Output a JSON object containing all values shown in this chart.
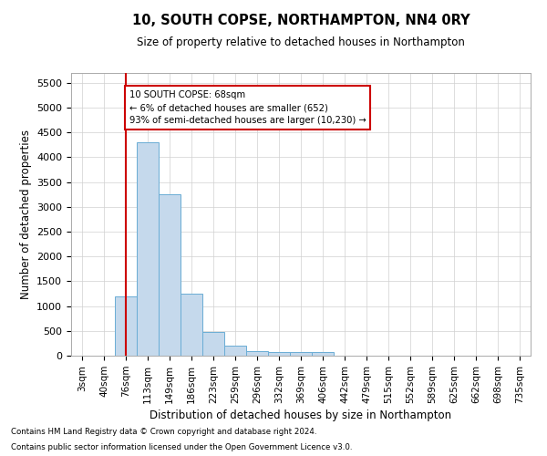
{
  "title": "10, SOUTH COPSE, NORTHAMPTON, NN4 0RY",
  "subtitle": "Size of property relative to detached houses in Northampton",
  "xlabel": "Distribution of detached houses by size in Northampton",
  "ylabel": "Number of detached properties",
  "footnote1": "Contains HM Land Registry data © Crown copyright and database right 2024.",
  "footnote2": "Contains public sector information licensed under the Open Government Licence v3.0.",
  "bin_labels": [
    "3sqm",
    "40sqm",
    "76sqm",
    "113sqm",
    "149sqm",
    "186sqm",
    "223sqm",
    "259sqm",
    "296sqm",
    "332sqm",
    "369sqm",
    "406sqm",
    "442sqm",
    "479sqm",
    "515sqm",
    "552sqm",
    "589sqm",
    "625sqm",
    "662sqm",
    "698sqm",
    "735sqm"
  ],
  "bar_values": [
    0,
    0,
    1200,
    4300,
    3250,
    1250,
    480,
    200,
    100,
    80,
    75,
    70,
    0,
    0,
    0,
    0,
    0,
    0,
    0,
    0,
    0
  ],
  "bar_color": "#c5d9ec",
  "bar_edge_color": "#6aadd5",
  "property_line_x": 2,
  "property_line_color": "#cc0000",
  "ylim": [
    0,
    5700
  ],
  "yticks": [
    0,
    500,
    1000,
    1500,
    2000,
    2500,
    3000,
    3500,
    4000,
    4500,
    5000,
    5500
  ],
  "annotation_text": "10 SOUTH COPSE: 68sqm\n← 6% of detached houses are smaller (652)\n93% of semi-detached houses are larger (10,230) →",
  "annotation_box_color": "#ffffff",
  "annotation_box_edge": "#cc0000",
  "background_color": "#ffffff",
  "grid_color": "#d0d0d0"
}
